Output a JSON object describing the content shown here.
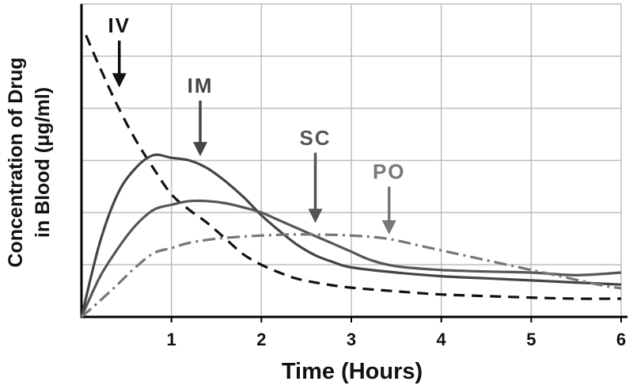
{
  "chart_data": {
    "type": "line",
    "title": "",
    "xlabel": "Time (Hours)",
    "ylabel": "Concentration of Drug in Blood (μg/ml)",
    "ylabel_line1": "Concentration of Drug",
    "ylabel_line2": "in Blood (μg/ml)",
    "xlim": [
      0,
      6
    ],
    "ylim": [
      0,
      6
    ],
    "x_ticks": [
      1,
      2,
      3,
      4,
      5,
      6
    ],
    "x_tick_labels": [
      "1",
      "2",
      "3",
      "4",
      "5",
      "6"
    ],
    "y_gridlines": [
      1,
      2,
      3,
      4,
      5,
      6
    ],
    "grid": true,
    "series": [
      {
        "name": "IV",
        "style": "dashed",
        "color": "#111111",
        "points": [
          [
            0.05,
            5.4
          ],
          [
            0.2,
            4.8
          ],
          [
            0.4,
            4.05
          ],
          [
            0.6,
            3.4
          ],
          [
            0.8,
            2.85
          ],
          [
            1.0,
            2.35
          ],
          [
            1.2,
            2.05
          ],
          [
            1.4,
            1.8
          ],
          [
            1.6,
            1.5
          ],
          [
            1.8,
            1.2
          ],
          [
            2.0,
            1.0
          ],
          [
            2.2,
            0.85
          ],
          [
            2.4,
            0.73
          ],
          [
            2.7,
            0.63
          ],
          [
            3.0,
            0.56
          ],
          [
            3.5,
            0.49
          ],
          [
            4.0,
            0.43
          ],
          [
            4.5,
            0.4
          ],
          [
            5.0,
            0.37
          ],
          [
            5.5,
            0.35
          ],
          [
            6.0,
            0.35
          ]
        ]
      },
      {
        "name": "IM",
        "style": "solid",
        "color": "#444444",
        "points": [
          [
            0,
            0
          ],
          [
            0.2,
            1.4
          ],
          [
            0.4,
            2.35
          ],
          [
            0.6,
            2.85
          ],
          [
            0.8,
            3.1
          ],
          [
            1.0,
            3.05
          ],
          [
            1.2,
            3.0
          ],
          [
            1.4,
            2.85
          ],
          [
            1.6,
            2.6
          ],
          [
            1.8,
            2.3
          ],
          [
            2.0,
            1.95
          ],
          [
            2.2,
            1.65
          ],
          [
            2.4,
            1.38
          ],
          [
            2.6,
            1.18
          ],
          [
            2.8,
            1.05
          ],
          [
            3.0,
            0.95
          ],
          [
            3.5,
            0.85
          ],
          [
            4.0,
            0.78
          ],
          [
            4.5,
            0.74
          ],
          [
            5.0,
            0.7
          ],
          [
            5.5,
            0.66
          ],
          [
            6.0,
            0.62
          ]
        ]
      },
      {
        "name": "SC",
        "style": "solid",
        "color": "#555555",
        "points": [
          [
            0,
            0
          ],
          [
            0.2,
            0.75
          ],
          [
            0.4,
            1.3
          ],
          [
            0.6,
            1.75
          ],
          [
            0.8,
            2.05
          ],
          [
            1.0,
            2.15
          ],
          [
            1.2,
            2.22
          ],
          [
            1.4,
            2.22
          ],
          [
            1.6,
            2.18
          ],
          [
            1.8,
            2.1
          ],
          [
            2.0,
            2.0
          ],
          [
            2.2,
            1.85
          ],
          [
            2.4,
            1.7
          ],
          [
            2.6,
            1.55
          ],
          [
            2.8,
            1.4
          ],
          [
            3.0,
            1.25
          ],
          [
            3.2,
            1.1
          ],
          [
            3.5,
            0.97
          ],
          [
            4.0,
            0.9
          ],
          [
            4.5,
            0.87
          ],
          [
            5.0,
            0.85
          ],
          [
            5.5,
            0.8
          ],
          [
            6.0,
            0.85
          ]
        ]
      },
      {
        "name": "PO",
        "style": "dashdot",
        "color": "#777777",
        "points": [
          [
            0,
            0
          ],
          [
            0.2,
            0.3
          ],
          [
            0.4,
            0.62
          ],
          [
            0.6,
            0.95
          ],
          [
            0.8,
            1.22
          ],
          [
            1.0,
            1.32
          ],
          [
            1.2,
            1.42
          ],
          [
            1.5,
            1.5
          ],
          [
            1.8,
            1.54
          ],
          [
            2.0,
            1.56
          ],
          [
            2.3,
            1.58
          ],
          [
            2.6,
            1.58
          ],
          [
            3.0,
            1.56
          ],
          [
            3.4,
            1.5
          ],
          [
            3.8,
            1.35
          ],
          [
            4.2,
            1.2
          ],
          [
            4.6,
            1.05
          ],
          [
            5.0,
            0.9
          ],
          [
            5.4,
            0.75
          ],
          [
            5.8,
            0.6
          ],
          [
            6.0,
            0.55
          ]
        ]
      }
    ],
    "annotations": [
      {
        "label": "IV",
        "target_x": 0.42,
        "target_y": 4.4,
        "label_y": 5.45,
        "color": "#111111"
      },
      {
        "label": "IM",
        "target_x": 1.32,
        "target_y": 3.08,
        "label_y": 4.3,
        "color": "#444444"
      },
      {
        "label": "SC",
        "target_x": 2.6,
        "target_y": 1.8,
        "label_y": 3.3,
        "color": "#555555"
      },
      {
        "label": "PO",
        "target_x": 3.42,
        "target_y": 1.58,
        "label_y": 2.65,
        "color": "#777777"
      }
    ]
  }
}
